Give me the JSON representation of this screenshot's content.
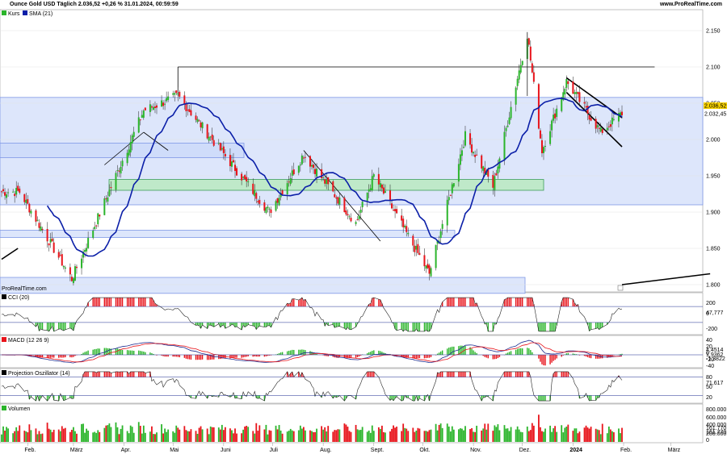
{
  "header": {
    "title": "Ounce Gold USD Täglich 2.036,52 +0,26 % 31.01.2024, 00:59:59",
    "source": "www.ProRealTime.com"
  },
  "watermark": "ProRealTime.com",
  "colors": {
    "up": "#2bb52b",
    "down": "#e8141b",
    "sma": "#0b1fa8",
    "zone_fill": "#dde6fb",
    "zone_stroke": "#7f98e6",
    "green_zone": "#bfe9c9",
    "green_zone_stroke": "#3e9e5a",
    "trendline": "#000000"
  },
  "panels": {
    "price": {
      "legend": [
        "Kurs",
        "SMA (21)"
      ]
    },
    "cci": {
      "legend": "CCI (20)",
      "ticks": [
        "200",
        "0",
        "-200"
      ],
      "value": "47,777"
    },
    "macd": {
      "legend": "MACD (12 26 9)",
      "ticks": [
        "40",
        "20",
        "0",
        "-20",
        "-40"
      ],
      "values": [
        "4,4514",
        "1,9362",
        "-1,3822"
      ]
    },
    "proj": {
      "legend": "Projection Oszillator (14)",
      "ticks": [
        "80",
        "50",
        "20"
      ],
      "value": "71,617"
    },
    "vol": {
      "legend": "Volumen",
      "ticks": [
        "800.000",
        "600.000",
        "400.000",
        "200.000",
        "0"
      ],
      "values": [
        "161.770",
        "161.770"
      ]
    }
  },
  "chart_data": {
    "type": "candlestick",
    "instrument": "Ounce Gold USD",
    "interval": "Täglich",
    "last_price": "2.036,52",
    "change": "+0,26 %",
    "timestamp": "31.01.2024, 00:59:59",
    "y_ticks": [
      "2.150",
      "2.100",
      "2.050",
      "2.000",
      "1.950",
      "1.900",
      "1.850",
      "1.800"
    ],
    "ylim": [
      1790,
      2170
    ],
    "price_labels": [
      "2.036,52",
      "2.032,45"
    ],
    "x_labels": [
      "Feb.",
      "März",
      "Apr.",
      "Mai",
      "Juni",
      "Juli",
      "Aug.",
      "Sept.",
      "Okt.",
      "Nov.",
      "Dez.",
      "2024",
      "Feb.",
      "März"
    ],
    "sma_period": 21,
    "key_prices": [
      {
        "date": "2023-01-27",
        "price": 1928
      },
      {
        "date": "2023-02-28",
        "price": 1808
      },
      {
        "date": "2023-04-13",
        "price": 2040
      },
      {
        "date": "2023-05-04",
        "price": 2060
      },
      {
        "date": "2023-06-29",
        "price": 1900
      },
      {
        "date": "2023-07-20",
        "price": 1980
      },
      {
        "date": "2023-08-21",
        "price": 1885
      },
      {
        "date": "2023-09-01",
        "price": 1950
      },
      {
        "date": "2023-10-05",
        "price": 1815
      },
      {
        "date": "2023-10-27",
        "price": 2005
      },
      {
        "date": "2023-11-13",
        "price": 1935
      },
      {
        "date": "2023-12-04",
        "price": 2145
      },
      {
        "date": "2023-12-13",
        "price": 1985
      },
      {
        "date": "2023-12-28",
        "price": 2080
      },
      {
        "date": "2024-01-18",
        "price": 2010
      },
      {
        "date": "2024-01-31",
        "price": 2036.52
      }
    ],
    "zones": [
      {
        "name": "resistance-zone",
        "from": 1910,
        "to": 2058
      },
      {
        "name": "support-zone",
        "from": 1865,
        "to": 1875
      },
      {
        "name": "bottom-zone",
        "from": 1788,
        "to": 1810
      },
      {
        "name": "upper-zone",
        "from": 1975,
        "to": 1995
      },
      {
        "name": "green-zone",
        "from": 1930,
        "to": 1945
      }
    ]
  }
}
